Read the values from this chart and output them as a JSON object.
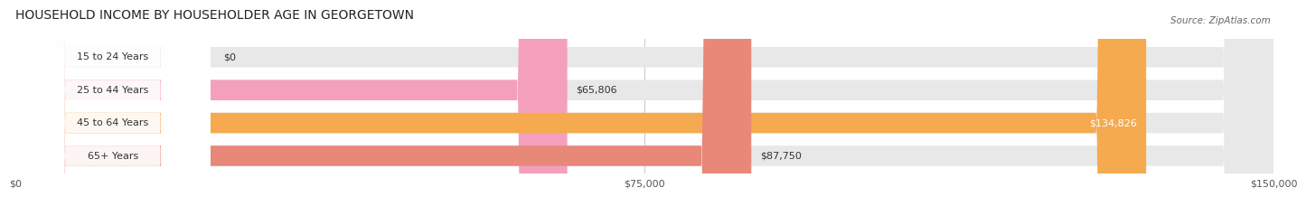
{
  "title": "HOUSEHOLD INCOME BY HOUSEHOLDER AGE IN GEORGETOWN",
  "source": "Source: ZipAtlas.com",
  "categories": [
    "15 to 24 Years",
    "25 to 44 Years",
    "45 to 64 Years",
    "65+ Years"
  ],
  "values": [
    0,
    65806,
    134826,
    87750
  ],
  "bar_colors": [
    "#b0b4e0",
    "#f4a0bc",
    "#f5aa50",
    "#e88878"
  ],
  "bg_color": "#e8e8e8",
  "label_bg": "#ffffff",
  "xlim": [
    0,
    150000
  ],
  "xticks": [
    0,
    75000,
    150000
  ],
  "xticklabels": [
    "$0",
    "$75,000",
    "$150,000"
  ],
  "value_labels": [
    "$0",
    "$65,806",
    "$134,826",
    "$87,750"
  ],
  "title_fontsize": 10,
  "source_fontsize": 7.5,
  "label_fontsize": 8,
  "tick_fontsize": 8,
  "bar_height": 0.62,
  "background_color": "#ffffff",
  "grid_color": "#cccccc",
  "label_color": "#333333",
  "value_color_inside": "#ffffff",
  "value_color_outside": "#333333"
}
